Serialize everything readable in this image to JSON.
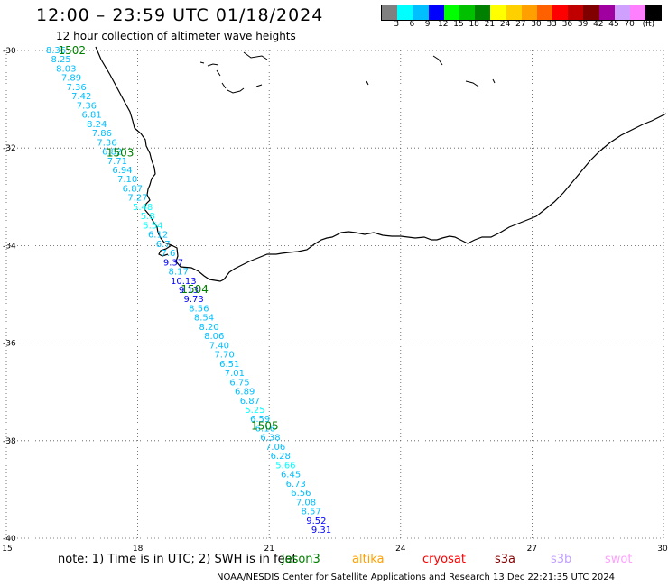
{
  "header": {
    "title": "12:00 – 23:59 UTC 01/18/2024",
    "subtitle": "12 hour collection of altimeter wave heights"
  },
  "colorbar": {
    "colors": [
      "#808080",
      "#00ffff",
      "#00bfff",
      "#0000ff",
      "#00ff00",
      "#00c000",
      "#008000",
      "#ffff00",
      "#ffd000",
      "#ffa000",
      "#ff6000",
      "#ff0000",
      "#c00000",
      "#800000",
      "#a000a0",
      "#d0a0ff",
      "#ff80ff",
      "#000000"
    ],
    "labels": [
      "3",
      "6",
      "9",
      "12",
      "15",
      "18",
      "21",
      "24",
      "27",
      "30",
      "33",
      "36",
      "39",
      "42",
      "45",
      "70",
      "(ft)"
    ]
  },
  "map": {
    "lon_range": [
      15,
      30
    ],
    "lat_range": [
      -40,
      -30
    ],
    "x_ticks": [
      "15",
      "18",
      "21",
      "24",
      "27",
      "30"
    ],
    "y_ticks": [
      "-30",
      "-32",
      "-34",
      "-36",
      "-38",
      "-40"
    ],
    "gridlines": true
  },
  "passes": [
    {
      "label": "1502",
      "lon": 16.5,
      "lat": -30.0
    },
    {
      "label": "1503",
      "lon": 17.6,
      "lat": -32.1
    },
    {
      "label": "1504",
      "lon": 19.3,
      "lat": -34.9
    },
    {
      "label": "1505",
      "lon": 20.9,
      "lat": -37.7
    }
  ],
  "track": {
    "values": [
      "8.36",
      "8.25",
      "8.03",
      "7.89",
      "7.36",
      "7.42",
      "7.36",
      "6.81",
      "8.24",
      "7.86",
      "7.36",
      "6.82",
      "7.71",
      "6.94",
      "7.10",
      "6.87",
      "7.27",
      "5.48",
      "5.8",
      "5.54",
      "6.12",
      "6.7",
      "7.6",
      "9.37",
      "8.17",
      "10.13",
      "9.13",
      "9.73",
      "8.56",
      "8.54",
      "8.20",
      "8.06",
      "7.40",
      "7.70",
      "6.51",
      "7.01",
      "6.75",
      "6.89",
      "6.87",
      "5.25",
      "6.59",
      "6.16",
      "6.38",
      "7.06",
      "6.28",
      "5.66",
      "6.45",
      "6.73",
      "6.56",
      "7.08",
      "8.57",
      "9.52",
      "9.31"
    ]
  },
  "footer": {
    "note": "note:  1) Time is in UTC; 2) SWH is in feet",
    "satellites": [
      {
        "name": "jason3",
        "color": "#008000"
      },
      {
        "name": "altika",
        "color": "#ffa000"
      },
      {
        "name": "cryosat",
        "color": "#ff0000"
      },
      {
        "name": "s3a",
        "color": "#800000"
      },
      {
        "name": "s3b",
        "color": "#c0a0ff"
      },
      {
        "name": "swot",
        "color": "#ffa0ff"
      }
    ],
    "credit": "NOAA/NESDIS Center for Satellite Applications and Research     13 Dec 22:21:35 UTC 2024"
  }
}
